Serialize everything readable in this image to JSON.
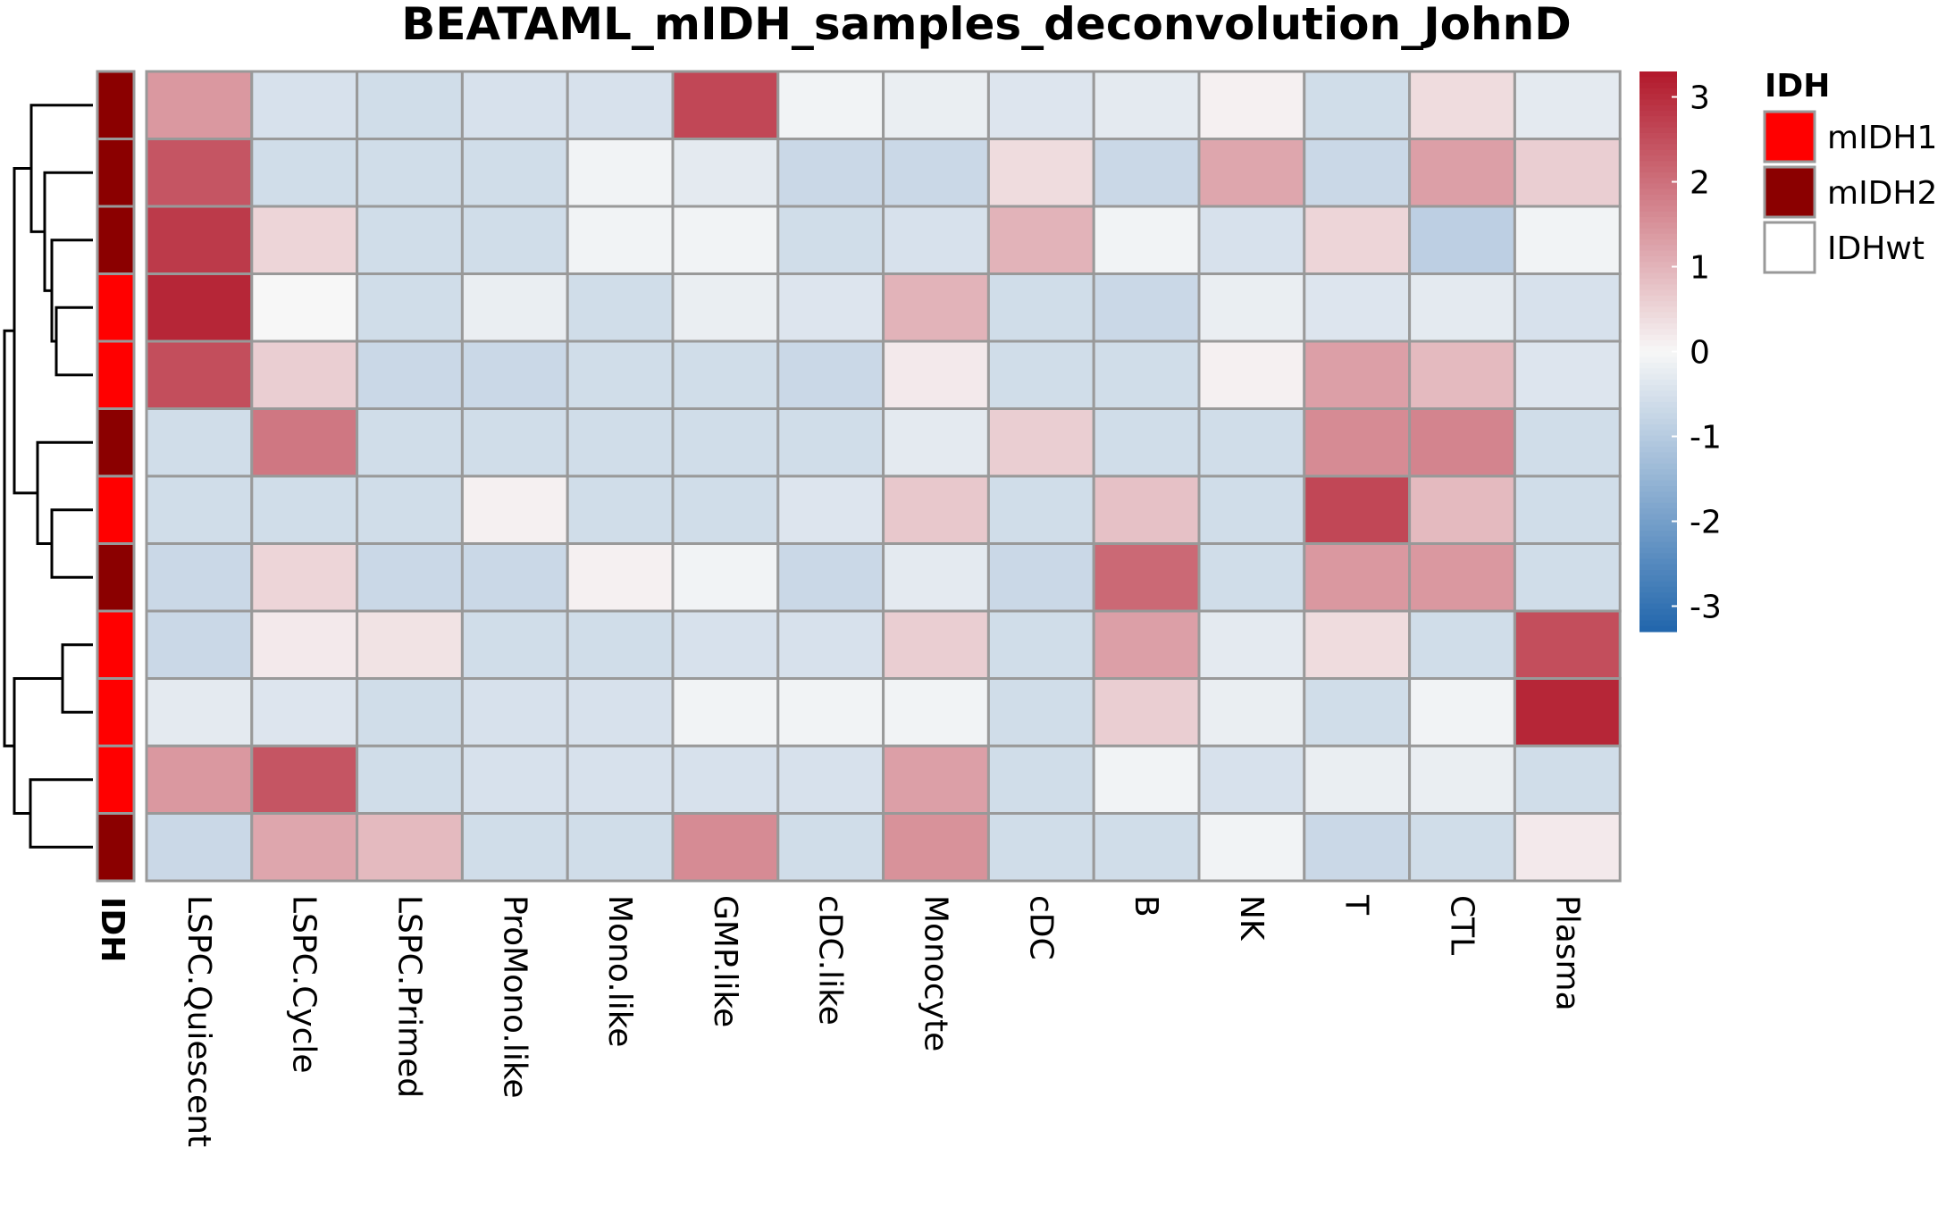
{
  "chart_data": {
    "type": "heatmap",
    "title": "BEATAML_mIDH_samples_deconvolution_JohnD",
    "columns": [
      "LSPC.Quiescent",
      "LSPC.Cycle",
      "LSPC.Primed",
      "ProMono.like",
      "Mono.like",
      "GMP.like",
      "cDC.like",
      "Monocyte",
      "cDC",
      "B",
      "NK",
      "T",
      "CTL",
      "Plasma"
    ],
    "values": [
      [
        1.4,
        -0.5,
        -0.6,
        -0.5,
        -0.5,
        2.6,
        -0.1,
        -0.2,
        -0.4,
        -0.3,
        0.1,
        -0.6,
        0.4,
        -0.3
      ],
      [
        2.4,
        -0.6,
        -0.6,
        -0.6,
        -0.1,
        -0.3,
        -0.7,
        -0.7,
        0.4,
        -0.7,
        1.2,
        -0.7,
        1.3,
        0.6
      ],
      [
        2.8,
        0.5,
        -0.6,
        -0.6,
        -0.1,
        -0.1,
        -0.6,
        -0.5,
        1.0,
        -0.1,
        -0.5,
        0.5,
        -0.9,
        -0.1
      ],
      [
        3.1,
        0.0,
        -0.6,
        -0.2,
        -0.6,
        -0.2,
        -0.4,
        1.0,
        -0.6,
        -0.7,
        -0.2,
        -0.4,
        -0.3,
        -0.5
      ],
      [
        2.5,
        0.6,
        -0.7,
        -0.7,
        -0.6,
        -0.6,
        -0.7,
        0.2,
        -0.6,
        -0.6,
        0.1,
        1.3,
        0.9,
        -0.4
      ],
      [
        -0.6,
        1.9,
        -0.6,
        -0.6,
        -0.6,
        -0.6,
        -0.6,
        -0.3,
        0.6,
        -0.6,
        -0.6,
        1.6,
        1.7,
        -0.6
      ],
      [
        -0.6,
        -0.6,
        -0.6,
        0.1,
        -0.6,
        -0.6,
        -0.4,
        0.7,
        -0.6,
        0.8,
        -0.6,
        2.6,
        0.9,
        -0.6
      ],
      [
        -0.7,
        0.5,
        -0.7,
        -0.7,
        0.1,
        -0.1,
        -0.7,
        -0.3,
        -0.7,
        2.1,
        -0.6,
        1.4,
        1.4,
        -0.6
      ],
      [
        -0.7,
        0.2,
        0.3,
        -0.6,
        -0.6,
        -0.5,
        -0.5,
        0.6,
        -0.6,
        1.3,
        -0.3,
        0.4,
        -0.6,
        2.5
      ],
      [
        -0.3,
        -0.4,
        -0.6,
        -0.5,
        -0.5,
        -0.1,
        -0.1,
        -0.1,
        -0.6,
        0.6,
        -0.2,
        -0.6,
        -0.1,
        3.1
      ],
      [
        1.4,
        2.4,
        -0.6,
        -0.5,
        -0.5,
        -0.5,
        -0.5,
        1.3,
        -0.6,
        -0.1,
        -0.5,
        -0.2,
        -0.2,
        -0.6
      ],
      [
        -0.7,
        1.2,
        0.9,
        -0.6,
        -0.6,
        1.6,
        -0.6,
        1.5,
        -0.6,
        -0.6,
        -0.1,
        -0.7,
        -0.6,
        0.2
      ]
    ],
    "row_annotation": {
      "name": "IDH",
      "values": [
        "mIDH2",
        "mIDH2",
        "mIDH2",
        "mIDH1",
        "mIDH1",
        "mIDH2",
        "mIDH1",
        "mIDH2",
        "mIDH1",
        "mIDH1",
        "mIDH1",
        "mIDH2"
      ]
    },
    "annotation_legend": {
      "title": "IDH",
      "entries": [
        {
          "label": "mIDH1",
          "color": "#FF0000"
        },
        {
          "label": "mIDH2",
          "color": "#8B0000"
        },
        {
          "label": "IDHwt",
          "color": "#FFFFFF"
        }
      ]
    },
    "color_scale": {
      "ticks": [
        3,
        2,
        1,
        0,
        -1,
        -2,
        -3
      ],
      "tick_labels": [
        "3",
        "2",
        "1",
        "0",
        "-1",
        "-2",
        "-3"
      ],
      "range": [
        -3.3,
        3.3
      ],
      "low_color": "#2166AC",
      "mid_color": "#F7F7F7",
      "high_color": "#B2182B"
    },
    "cell_border_color": "#999999",
    "row_dendrogram": true
  }
}
